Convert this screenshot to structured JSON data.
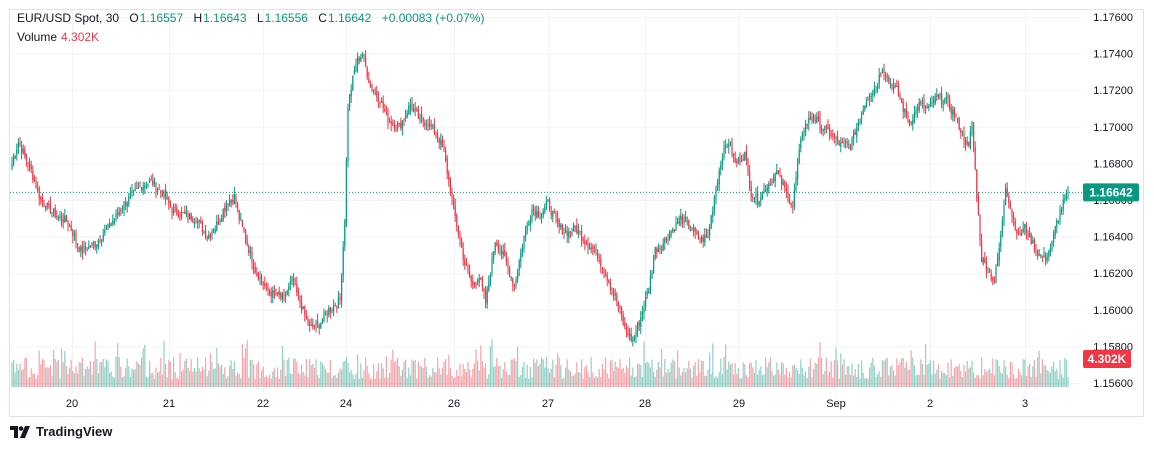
{
  "legend": {
    "symbol": "EUR/USD Spot, 30",
    "open_label": "O",
    "open": "1.16557",
    "high_label": "H",
    "high": "1.16643",
    "low_label": "L",
    "low": "1.16556",
    "close_label": "C",
    "close": "1.16642",
    "change": "+0.00083 (+0.07%)",
    "volume_label": "Volume",
    "volume": "4.302K"
  },
  "price_badge": "1.16642",
  "volume_badge": "4.302K",
  "brand": {
    "name": "TradingView",
    "icon": "tradingview-logo-icon"
  },
  "colors": {
    "up": "#089981",
    "down": "#f23645",
    "price_badge": "#089981",
    "volume_badge": "#f23645"
  },
  "chart_data": {
    "type": "candlestick",
    "title": "EUR/USD Spot, 30",
    "ylim": [
      1.156,
      1.176
    ],
    "y_ticks": [
      "1.17600",
      "1.17400",
      "1.17200",
      "1.17000",
      "1.16800",
      "1.16600",
      "1.16400",
      "1.16200",
      "1.16000",
      "1.15800",
      "1.15600"
    ],
    "x_ticks": [
      "20",
      "21",
      "22",
      "24",
      "26",
      "27",
      "28",
      "29",
      "Sep",
      "2",
      "3"
    ],
    "last_price": 1.16642,
    "grid": true,
    "price_path": [
      [
        0,
        1.168
      ],
      [
        4,
        1.1692
      ],
      [
        12,
        1.1676
      ],
      [
        18,
        1.166
      ],
      [
        28,
        1.1651
      ],
      [
        35,
        1.1648
      ],
      [
        43,
        1.1632
      ],
      [
        52,
        1.1636
      ],
      [
        62,
        1.1647
      ],
      [
        70,
        1.1658
      ],
      [
        80,
        1.1667
      ],
      [
        87,
        1.167
      ],
      [
        94,
        1.1664
      ],
      [
        100,
        1.1655
      ],
      [
        107,
        1.1652
      ],
      [
        115,
        1.165
      ],
      [
        122,
        1.164
      ],
      [
        127,
        1.1645
      ],
      [
        134,
        1.1658
      ],
      [
        139,
        1.1662
      ],
      [
        142,
        1.165
      ],
      [
        152,
        1.1622
      ],
      [
        160,
        1.161
      ],
      [
        170,
        1.1606
      ],
      [
        175,
        1.1616
      ],
      [
        180,
        1.1604
      ],
      [
        186,
        1.159
      ],
      [
        192,
        1.1592
      ],
      [
        198,
        1.16
      ],
      [
        205,
        1.1605
      ],
      [
        208,
        1.165
      ],
      [
        210,
        1.1712
      ],
      [
        215,
        1.1735
      ],
      [
        219,
        1.174
      ],
      [
        224,
        1.1722
      ],
      [
        230,
        1.1715
      ],
      [
        235,
        1.1704
      ],
      [
        242,
        1.17
      ],
      [
        249,
        1.1712
      ],
      [
        254,
        1.1705
      ],
      [
        260,
        1.1702
      ],
      [
        266,
        1.1695
      ],
      [
        270,
        1.1686
      ],
      [
        276,
        1.1655
      ],
      [
        283,
        1.1625
      ],
      [
        288,
        1.1613
      ],
      [
        292,
        1.1618
      ],
      [
        296,
        1.1604
      ],
      [
        302,
        1.1638
      ],
      [
        308,
        1.1628
      ],
      [
        314,
        1.1613
      ],
      [
        320,
        1.164
      ],
      [
        325,
        1.1655
      ],
      [
        330,
        1.1652
      ],
      [
        335,
        1.1658
      ],
      [
        342,
        1.1645
      ],
      [
        348,
        1.1642
      ],
      [
        352,
        1.1645
      ],
      [
        358,
        1.1638
      ],
      [
        366,
        1.163
      ],
      [
        372,
        1.1618
      ],
      [
        378,
        1.1605
      ],
      [
        383,
        1.159
      ],
      [
        388,
        1.1583
      ],
      [
        393,
        1.1596
      ],
      [
        398,
        1.1612
      ],
      [
        402,
        1.1633
      ],
      [
        406,
        1.1635
      ],
      [
        412,
        1.1643
      ],
      [
        418,
        1.165
      ],
      [
        424,
        1.1645
      ],
      [
        430,
        1.1638
      ],
      [
        435,
        1.164
      ],
      [
        440,
        1.1667
      ],
      [
        444,
        1.1685
      ],
      [
        448,
        1.1692
      ],
      [
        452,
        1.168
      ],
      [
        458,
        1.1685
      ],
      [
        462,
        1.1664
      ],
      [
        466,
        1.166
      ],
      [
        472,
        1.1668
      ],
      [
        478,
        1.1675
      ],
      [
        482,
        1.1668
      ],
      [
        486,
        1.166
      ],
      [
        488,
        1.1656
      ],
      [
        490,
        1.1672
      ],
      [
        494,
        1.1698
      ],
      [
        500,
        1.1706
      ],
      [
        506,
        1.17
      ],
      [
        512,
        1.1696
      ],
      [
        518,
        1.169
      ],
      [
        524,
        1.169
      ],
      [
        530,
        1.1705
      ],
      [
        534,
        1.1715
      ],
      [
        540,
        1.1722
      ],
      [
        544,
        1.1733
      ],
      [
        548,
        1.1725
      ],
      [
        553,
        1.172
      ],
      [
        557,
        1.171
      ],
      [
        561,
        1.1702
      ],
      [
        567,
        1.1712
      ],
      [
        573,
        1.171
      ],
      [
        578,
        1.1716
      ],
      [
        584,
        1.1714
      ],
      [
        590,
        1.1705
      ],
      [
        594,
        1.1696
      ],
      [
        598,
        1.1688
      ],
      [
        600,
        1.1703
      ],
      [
        603,
        1.1663
      ],
      [
        606,
        1.1628
      ],
      [
        610,
        1.1622
      ],
      [
        614,
        1.1615
      ],
      [
        618,
        1.164
      ],
      [
        621,
        1.1668
      ],
      [
        625,
        1.1652
      ],
      [
        629,
        1.164
      ],
      [
        633,
        1.1645
      ],
      [
        637,
        1.1638
      ],
      [
        642,
        1.163
      ],
      [
        646,
        1.1628
      ],
      [
        650,
        1.1636
      ],
      [
        653,
        1.1648
      ],
      [
        656,
        1.1656
      ],
      [
        660,
        1.1664
      ]
    ],
    "candle_spacing_hours": 0.5,
    "volume_series": "per-candle volume bars in lower pane, color follows candle direction"
  }
}
